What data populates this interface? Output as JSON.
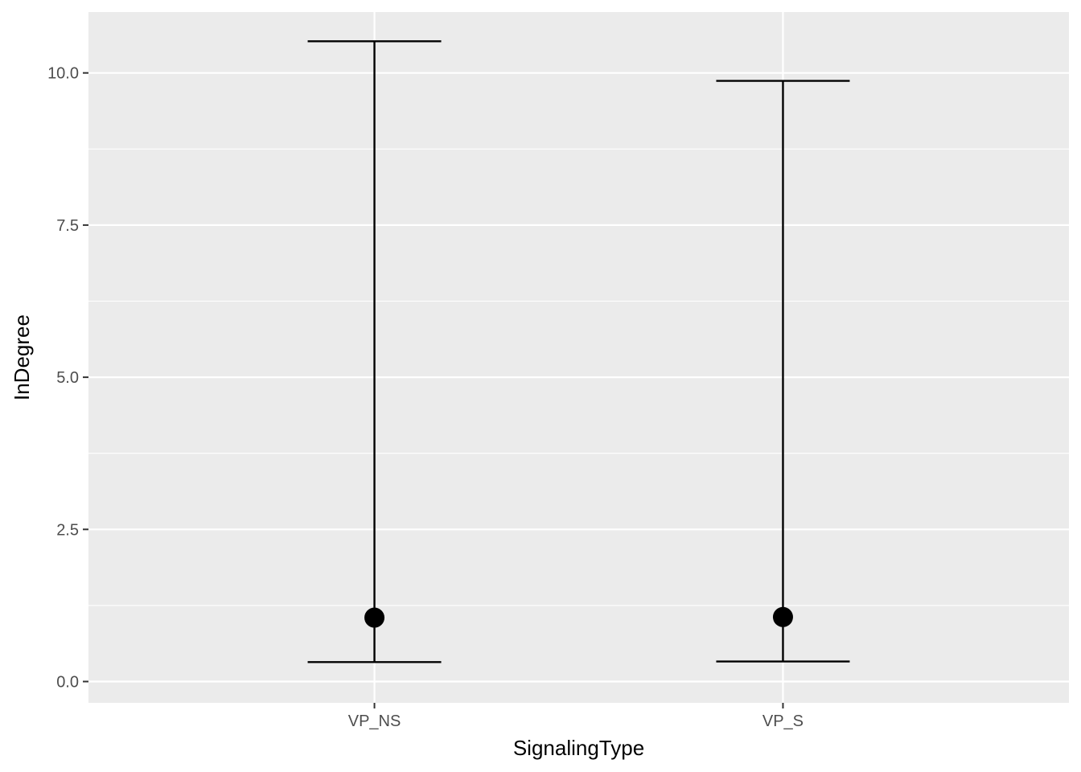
{
  "chart_data": {
    "type": "errorbar",
    "xlabel": "SignalingType",
    "ylabel": "InDegree",
    "categories": [
      "VP_NS",
      "VP_S"
    ],
    "series": [
      {
        "points": [
          {
            "x": "VP_NS",
            "y": 1.05,
            "ymin": 0.32,
            "ymax": 10.52
          },
          {
            "x": "VP_S",
            "y": 1.06,
            "ymin": 0.33,
            "ymax": 9.87
          }
        ]
      }
    ],
    "ylim": [
      -0.35,
      11.0
    ],
    "yticks": [
      0.0,
      2.5,
      5.0,
      7.5,
      10.0
    ],
    "ytick_labels": [
      "0.0",
      "2.5",
      "5.0",
      "7.5",
      "10.0"
    ],
    "grid": true,
    "colors": {
      "panel_background": "#ebebeb",
      "grid": "#ffffff",
      "marks": "#000000",
      "tick_text": "#4d4d4d"
    }
  }
}
